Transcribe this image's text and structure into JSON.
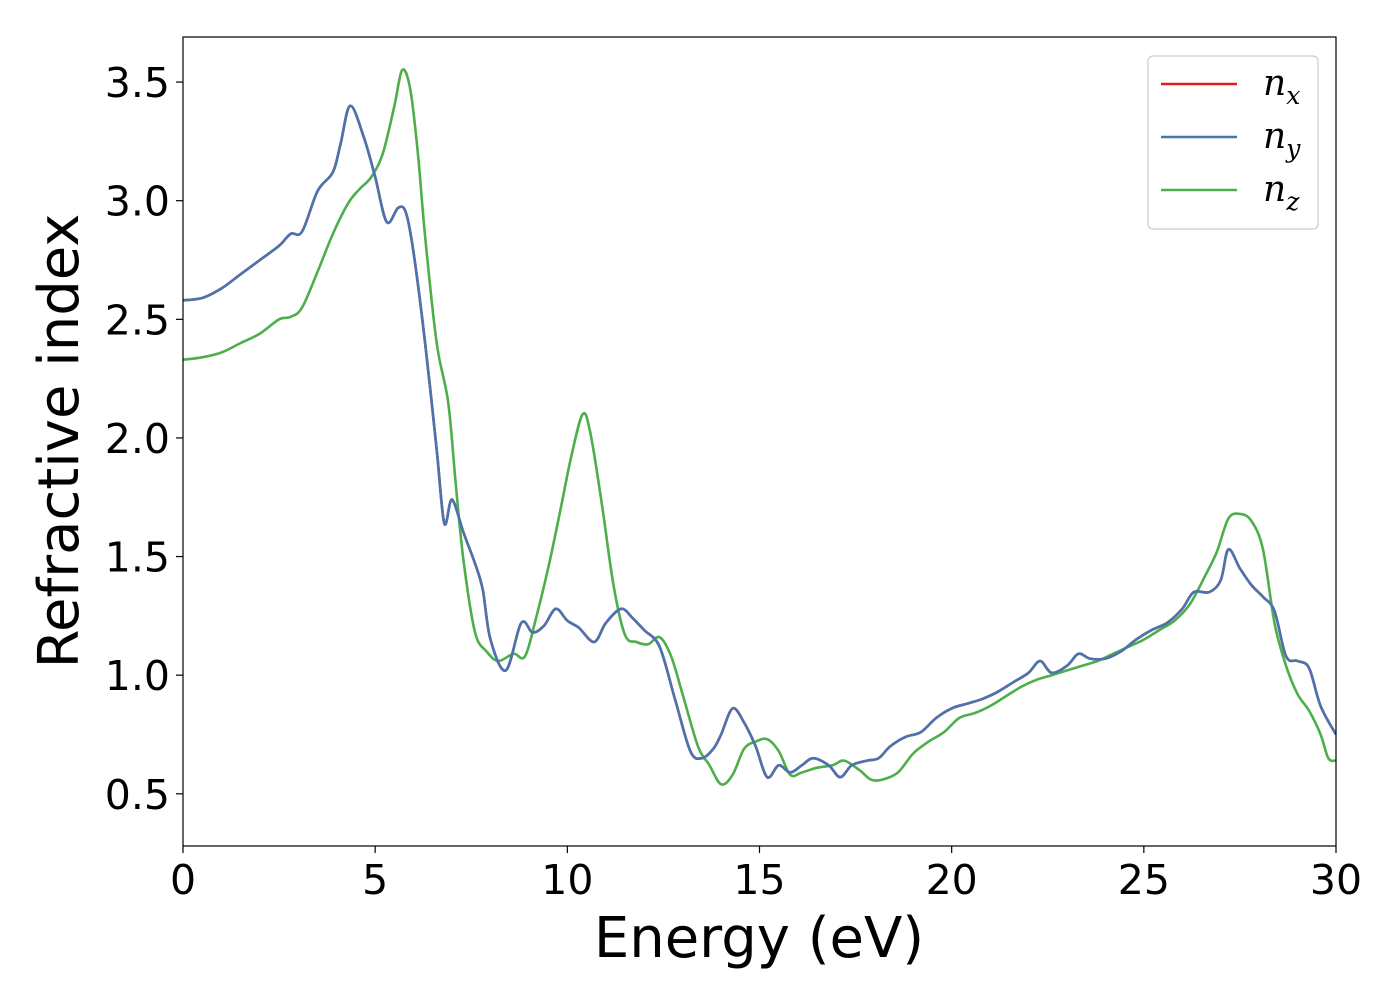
{
  "chart_data": {
    "type": "line",
    "title": "",
    "xlabel": "Energy (eV)",
    "ylabel": "Refractive index",
    "xlim": [
      0,
      30
    ],
    "ylim": [
      0.28,
      3.69
    ],
    "xticks": [
      0,
      5,
      10,
      15,
      20,
      25,
      30
    ],
    "yticks": [
      0.5,
      1.0,
      1.5,
      2.0,
      2.5,
      3.0,
      3.5
    ],
    "xtick_labels": [
      "0",
      "5",
      "10",
      "15",
      "20",
      "25",
      "30"
    ],
    "ytick_labels": [
      "0.5",
      "1.0",
      "1.5",
      "2.0",
      "2.5",
      "3.0",
      "3.5"
    ],
    "grid": false,
    "legend": {
      "placement": "top-right",
      "entries": [
        {
          "base": "n",
          "sub": "x",
          "color": "#e41a1c"
        },
        {
          "base": "n",
          "sub": "y",
          "color": "#4a74b0"
        },
        {
          "base": "n",
          "sub": "z",
          "color": "#4daf4a"
        }
      ]
    },
    "series": [
      {
        "name": "n_x",
        "color": "#e41a1c",
        "x": [
          0,
          0.5,
          1,
          1.5,
          2,
          2.5,
          2.8,
          3.1,
          3.5,
          3.9,
          4.1,
          4.35,
          4.7,
          5.0,
          5.3,
          5.6,
          5.8,
          6.0,
          6.3,
          6.6,
          6.8,
          7.0,
          7.3,
          7.6,
          7.8,
          8.0,
          8.4,
          8.8,
          9.1,
          9.4,
          9.7,
          10.0,
          10.3,
          10.7,
          11.0,
          11.4,
          11.7,
          12.0,
          12.4,
          12.8,
          13.2,
          13.5,
          13.8,
          14.0,
          14.3,
          14.6,
          14.9,
          15.2,
          15.5,
          15.8,
          16.1,
          16.4,
          16.8,
          17.1,
          17.4,
          17.8,
          18.1,
          18.4,
          18.8,
          19.2,
          19.6,
          20.0,
          20.4,
          20.8,
          21.2,
          21.6,
          22.0,
          22.3,
          22.6,
          23.0,
          23.3,
          23.6,
          24.0,
          24.4,
          24.8,
          25.2,
          25.6,
          26.0,
          26.3,
          26.7,
          27.0,
          27.2,
          27.5,
          27.8,
          28.1,
          28.4,
          28.7,
          29.0,
          29.3,
          29.6,
          30.0
        ],
        "y": [
          2.58,
          2.59,
          2.63,
          2.69,
          2.75,
          2.81,
          2.86,
          2.87,
          3.04,
          3.12,
          3.24,
          3.4,
          3.27,
          3.1,
          2.91,
          2.97,
          2.95,
          2.78,
          2.4,
          1.95,
          1.64,
          1.74,
          1.6,
          1.47,
          1.36,
          1.15,
          1.02,
          1.22,
          1.18,
          1.21,
          1.28,
          1.23,
          1.2,
          1.14,
          1.22,
          1.28,
          1.24,
          1.19,
          1.12,
          0.9,
          0.68,
          0.65,
          0.69,
          0.75,
          0.86,
          0.8,
          0.7,
          0.57,
          0.62,
          0.59,
          0.62,
          0.65,
          0.62,
          0.57,
          0.62,
          0.64,
          0.65,
          0.7,
          0.74,
          0.76,
          0.82,
          0.86,
          0.88,
          0.9,
          0.93,
          0.97,
          1.01,
          1.06,
          1.01,
          1.04,
          1.09,
          1.07,
          1.07,
          1.1,
          1.15,
          1.19,
          1.22,
          1.28,
          1.35,
          1.35,
          1.4,
          1.53,
          1.45,
          1.38,
          1.33,
          1.27,
          1.08,
          1.06,
          1.03,
          0.87,
          0.75
        ]
      },
      {
        "name": "n_y",
        "color": "#4a74b0",
        "x": [
          0,
          0.5,
          1,
          1.5,
          2,
          2.5,
          2.8,
          3.1,
          3.5,
          3.9,
          4.1,
          4.35,
          4.7,
          5.0,
          5.3,
          5.6,
          5.8,
          6.0,
          6.3,
          6.6,
          6.8,
          7.0,
          7.3,
          7.6,
          7.8,
          8.0,
          8.4,
          8.8,
          9.1,
          9.4,
          9.7,
          10.0,
          10.3,
          10.7,
          11.0,
          11.4,
          11.7,
          12.0,
          12.4,
          12.8,
          13.2,
          13.5,
          13.8,
          14.0,
          14.3,
          14.6,
          14.9,
          15.2,
          15.5,
          15.8,
          16.1,
          16.4,
          16.8,
          17.1,
          17.4,
          17.8,
          18.1,
          18.4,
          18.8,
          19.2,
          19.6,
          20.0,
          20.4,
          20.8,
          21.2,
          21.6,
          22.0,
          22.3,
          22.6,
          23.0,
          23.3,
          23.6,
          24.0,
          24.4,
          24.8,
          25.2,
          25.6,
          26.0,
          26.3,
          26.7,
          27.0,
          27.2,
          27.5,
          27.8,
          28.1,
          28.4,
          28.7,
          29.0,
          29.3,
          29.6,
          30.0
        ],
        "y": [
          2.58,
          2.59,
          2.63,
          2.69,
          2.75,
          2.81,
          2.86,
          2.87,
          3.04,
          3.12,
          3.24,
          3.4,
          3.27,
          3.1,
          2.91,
          2.97,
          2.95,
          2.78,
          2.4,
          1.95,
          1.64,
          1.74,
          1.6,
          1.47,
          1.36,
          1.15,
          1.02,
          1.22,
          1.18,
          1.21,
          1.28,
          1.23,
          1.2,
          1.14,
          1.22,
          1.28,
          1.24,
          1.19,
          1.12,
          0.9,
          0.68,
          0.65,
          0.69,
          0.75,
          0.86,
          0.8,
          0.7,
          0.57,
          0.62,
          0.59,
          0.62,
          0.65,
          0.62,
          0.57,
          0.62,
          0.64,
          0.65,
          0.7,
          0.74,
          0.76,
          0.82,
          0.86,
          0.88,
          0.9,
          0.93,
          0.97,
          1.01,
          1.06,
          1.01,
          1.04,
          1.09,
          1.07,
          1.07,
          1.1,
          1.15,
          1.19,
          1.22,
          1.28,
          1.35,
          1.35,
          1.4,
          1.53,
          1.45,
          1.38,
          1.33,
          1.27,
          1.08,
          1.06,
          1.03,
          0.87,
          0.75
        ]
      },
      {
        "name": "n_z",
        "color": "#4daf4a",
        "x": [
          0,
          0.5,
          1,
          1.5,
          2,
          2.5,
          2.8,
          3.1,
          3.5,
          3.9,
          4.3,
          4.6,
          4.9,
          5.2,
          5.5,
          5.7,
          5.9,
          6.1,
          6.3,
          6.6,
          6.9,
          7.1,
          7.3,
          7.6,
          7.9,
          8.2,
          8.6,
          8.9,
          9.2,
          9.5,
          9.8,
          10.1,
          10.4,
          10.6,
          10.9,
          11.2,
          11.5,
          11.8,
          12.1,
          12.4,
          12.7,
          13.0,
          13.4,
          13.7,
          14.0,
          14.3,
          14.6,
          14.9,
          15.2,
          15.5,
          15.8,
          16.1,
          16.5,
          16.9,
          17.2,
          17.6,
          17.9,
          18.2,
          18.6,
          19.0,
          19.4,
          19.8,
          20.2,
          20.6,
          21.0,
          21.4,
          21.8,
          22.2,
          22.6,
          23.0,
          23.4,
          23.8,
          24.2,
          24.6,
          25.0,
          25.4,
          25.8,
          26.2,
          26.6,
          26.9,
          27.2,
          27.5,
          27.8,
          28.1,
          28.4,
          28.7,
          29.0,
          29.3,
          29.6,
          29.8,
          30.0
        ],
        "y": [
          2.33,
          2.34,
          2.36,
          2.4,
          2.44,
          2.5,
          2.51,
          2.55,
          2.7,
          2.86,
          2.99,
          3.05,
          3.1,
          3.2,
          3.4,
          3.55,
          3.48,
          3.22,
          2.85,
          2.4,
          2.15,
          1.8,
          1.48,
          1.18,
          1.1,
          1.06,
          1.09,
          1.08,
          1.25,
          1.45,
          1.68,
          1.92,
          2.1,
          2.02,
          1.72,
          1.38,
          1.17,
          1.14,
          1.13,
          1.16,
          1.08,
          0.92,
          0.7,
          0.62,
          0.54,
          0.58,
          0.69,
          0.72,
          0.73,
          0.68,
          0.58,
          0.59,
          0.61,
          0.62,
          0.64,
          0.6,
          0.56,
          0.56,
          0.59,
          0.67,
          0.72,
          0.76,
          0.82,
          0.84,
          0.87,
          0.91,
          0.95,
          0.98,
          1.0,
          1.02,
          1.04,
          1.06,
          1.09,
          1.12,
          1.15,
          1.19,
          1.23,
          1.3,
          1.42,
          1.52,
          1.66,
          1.68,
          1.65,
          1.53,
          1.22,
          1.04,
          0.92,
          0.85,
          0.75,
          0.65,
          0.64
        ]
      }
    ]
  }
}
